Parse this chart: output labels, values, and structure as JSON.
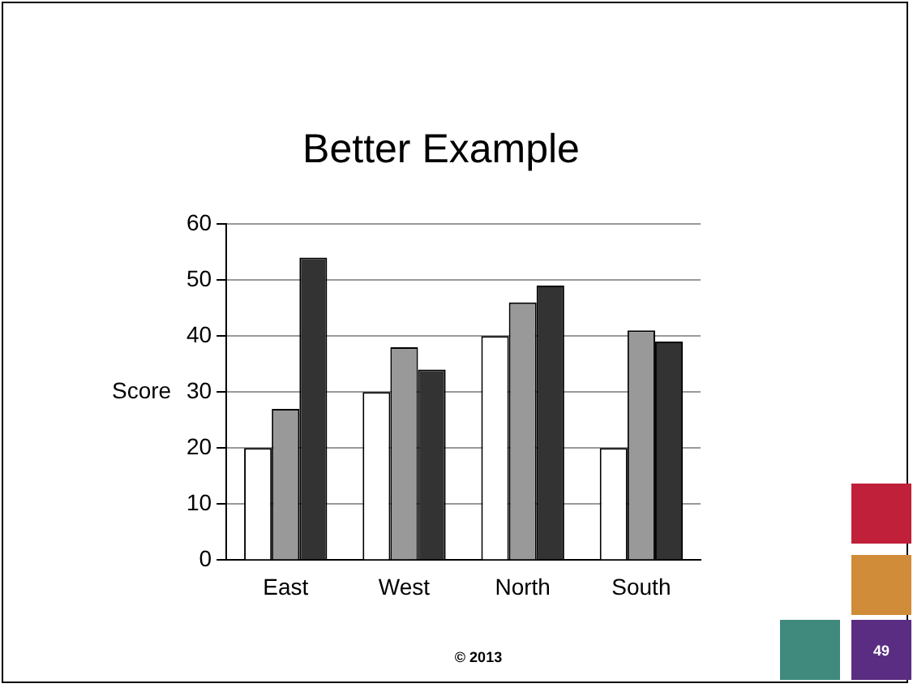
{
  "chart_data": {
    "type": "bar",
    "title": "Better Example",
    "ylabel": "Score",
    "categories": [
      "East",
      "West",
      "North",
      "South"
    ],
    "series": [
      {
        "color": "#ffffff",
        "values": [
          20,
          30,
          40,
          20
        ]
      },
      {
        "color": "#999999",
        "values": [
          27,
          38,
          46,
          41
        ]
      },
      {
        "color": "#333333",
        "values": [
          54,
          34,
          49,
          39
        ]
      }
    ],
    "ylim": [
      0,
      60
    ],
    "yticks": [
      0,
      10,
      20,
      30,
      40,
      50,
      60
    ],
    "grid": "y",
    "legend": false,
    "annotations": [
      "© 2013",
      "49"
    ]
  }
}
